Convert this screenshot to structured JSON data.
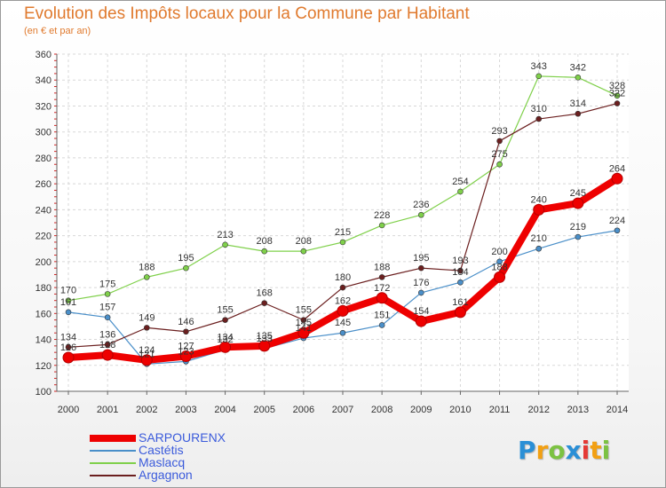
{
  "header": {
    "title": "Evolution des Impôts locaux pour la Commune par Habitant",
    "subtitle": "(en € et par an)"
  },
  "brand": {
    "letters": [
      "P",
      "r",
      "o",
      "x",
      "i",
      "t",
      "i"
    ],
    "colors": [
      "#2a8fd6",
      "#f2a013",
      "#7cc242",
      "#2a8fd6",
      "#e53935",
      "#f2a013",
      "#7cc242"
    ]
  },
  "chart_data": {
    "type": "line",
    "title": "Evolution des Impôts locaux pour la Commune par Habitant",
    "subtitle": "(en € et par an)",
    "xlabel": "",
    "ylabel": "",
    "categories": [
      "2000",
      "2001",
      "2002",
      "2003",
      "2004",
      "2005",
      "2006",
      "2007",
      "2008",
      "2009",
      "2010",
      "2011",
      "2012",
      "2013",
      "2014"
    ],
    "ylim": [
      100,
      360
    ],
    "yticks": [
      100,
      120,
      140,
      160,
      180,
      200,
      220,
      240,
      260,
      280,
      300,
      320,
      340,
      360
    ],
    "grid": true,
    "legend_position": "bottom-left",
    "series": [
      {
        "name": "SARPOURENX",
        "color": "#ee0000",
        "emphasis": true,
        "values": [
          126,
          128,
          124,
          127,
          134,
          135,
          145,
          162,
          172,
          154,
          161,
          188,
          240,
          245,
          264
        ],
        "labels": [
          "126",
          "128",
          "124",
          "127",
          "134",
          "135",
          "145",
          "162",
          "172",
          "154",
          "161",
          "188",
          "240",
          "245",
          "264"
        ]
      },
      {
        "name": "Castétis",
        "color": "#4a8fc9",
        "values": [
          161,
          157,
          121,
          123,
          132,
          133,
          141,
          145,
          151,
          176,
          184,
          200,
          210,
          219,
          224
        ],
        "labels": [
          "161",
          "157",
          "121",
          "123",
          "132",
          "133",
          "141",
          "145",
          "151",
          "176",
          "184",
          "200",
          "210",
          "219",
          "224"
        ]
      },
      {
        "name": "Maslacq",
        "color": "#7fd04a",
        "values": [
          170,
          175,
          188,
          195,
          213,
          208,
          208,
          215,
          228,
          236,
          254,
          275,
          343,
          342,
          328
        ],
        "labels": [
          "170",
          "175",
          "188",
          "195",
          "213",
          "208",
          "208",
          "215",
          "228",
          "236",
          "254",
          "275",
          "343",
          "342",
          "328"
        ]
      },
      {
        "name": "Argagnon",
        "color": "#6b1f1f",
        "values": [
          134,
          136,
          149,
          146,
          155,
          168,
          155,
          180,
          188,
          195,
          193,
          293,
          310,
          314,
          322
        ],
        "labels": [
          "134",
          "136",
          "149",
          "146",
          "155",
          "168",
          "155",
          "180",
          "188",
          "195",
          "193",
          "293",
          "310",
          "314",
          "322"
        ]
      }
    ]
  }
}
